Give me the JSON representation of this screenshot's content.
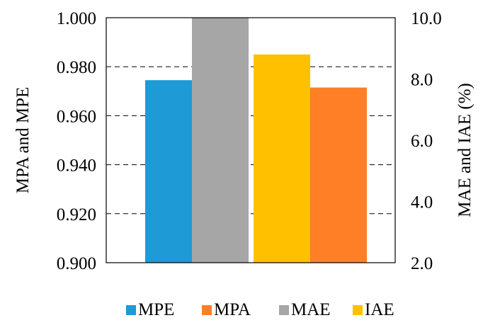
{
  "chart_data": {
    "type": "bar",
    "title": "",
    "ylabel_left": "MPA and MPE",
    "ylabel_right": "MAE and IAE (%)",
    "ylim_left": [
      0.9,
      1.0
    ],
    "ylim_right": [
      2.0,
      10.0
    ],
    "yticks_left": [
      "0.900",
      "0.920",
      "0.940",
      "0.960",
      "0.980",
      "1.000"
    ],
    "yticks_right": [
      "2.0",
      "4.0",
      "6.0",
      "8.0",
      "10.0"
    ],
    "grid": "dashed horizontal",
    "legend_position": "bottom",
    "series": [
      {
        "name": "MPE",
        "axis": "left",
        "value": 0.9745,
        "color": "#1E9AD6"
      },
      {
        "name": "MAE",
        "axis": "right",
        "value": 10.0,
        "color": "#A6A6A6"
      },
      {
        "name": "IAE",
        "axis": "right",
        "value": 8.8,
        "color": "#FFC000"
      },
      {
        "name": "MPA",
        "axis": "left",
        "value": 0.9715,
        "color": "#FF7F27"
      }
    ],
    "legend": [
      {
        "name": "MPE",
        "color": "#1E9AD6"
      },
      {
        "name": "MPA",
        "color": "#FF7F27"
      },
      {
        "name": "MAE",
        "color": "#A6A6A6"
      },
      {
        "name": "IAE",
        "color": "#FFC000"
      }
    ]
  }
}
